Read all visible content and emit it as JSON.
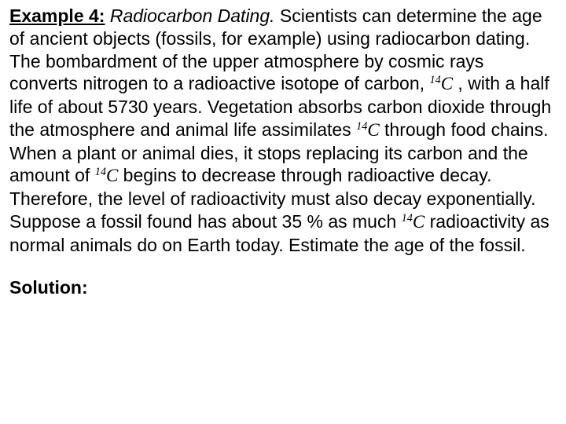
{
  "text_color": "#000000",
  "background_color": "#ffffff",
  "font_family_body": "Arial",
  "font_family_math": "Times New Roman",
  "font_size_pt": 17,
  "isotope_super": "14",
  "isotope_letter": "C",
  "heading_label": "Example 4:",
  "heading_title": "Radiocarbon Dating.",
  "frag1": " Scientists can determine the age of ancient objects (fossils, for example) using radiocarbon dating. The bombardment of the upper atmosphere by cosmic rays converts nitrogen to a radioactive isotope of carbon, ",
  "frag2": " , with a half life of about 5730 years. Vegetation absorbs carbon dioxide through the atmosphere and animal life assimilates ",
  "frag3": " through food chains. When a plant or animal dies, it stops replacing its carbon and the amount of ",
  "frag4": " begins to decrease through radioactive decay. Therefore, the level of radioactivity must also decay exponentially. Suppose a fossil found has about 35 % as much ",
  "frag5": " radioactivity as normal animals do on Earth today. Estimate the age of the fossil.",
  "solution_label": "Solution:"
}
